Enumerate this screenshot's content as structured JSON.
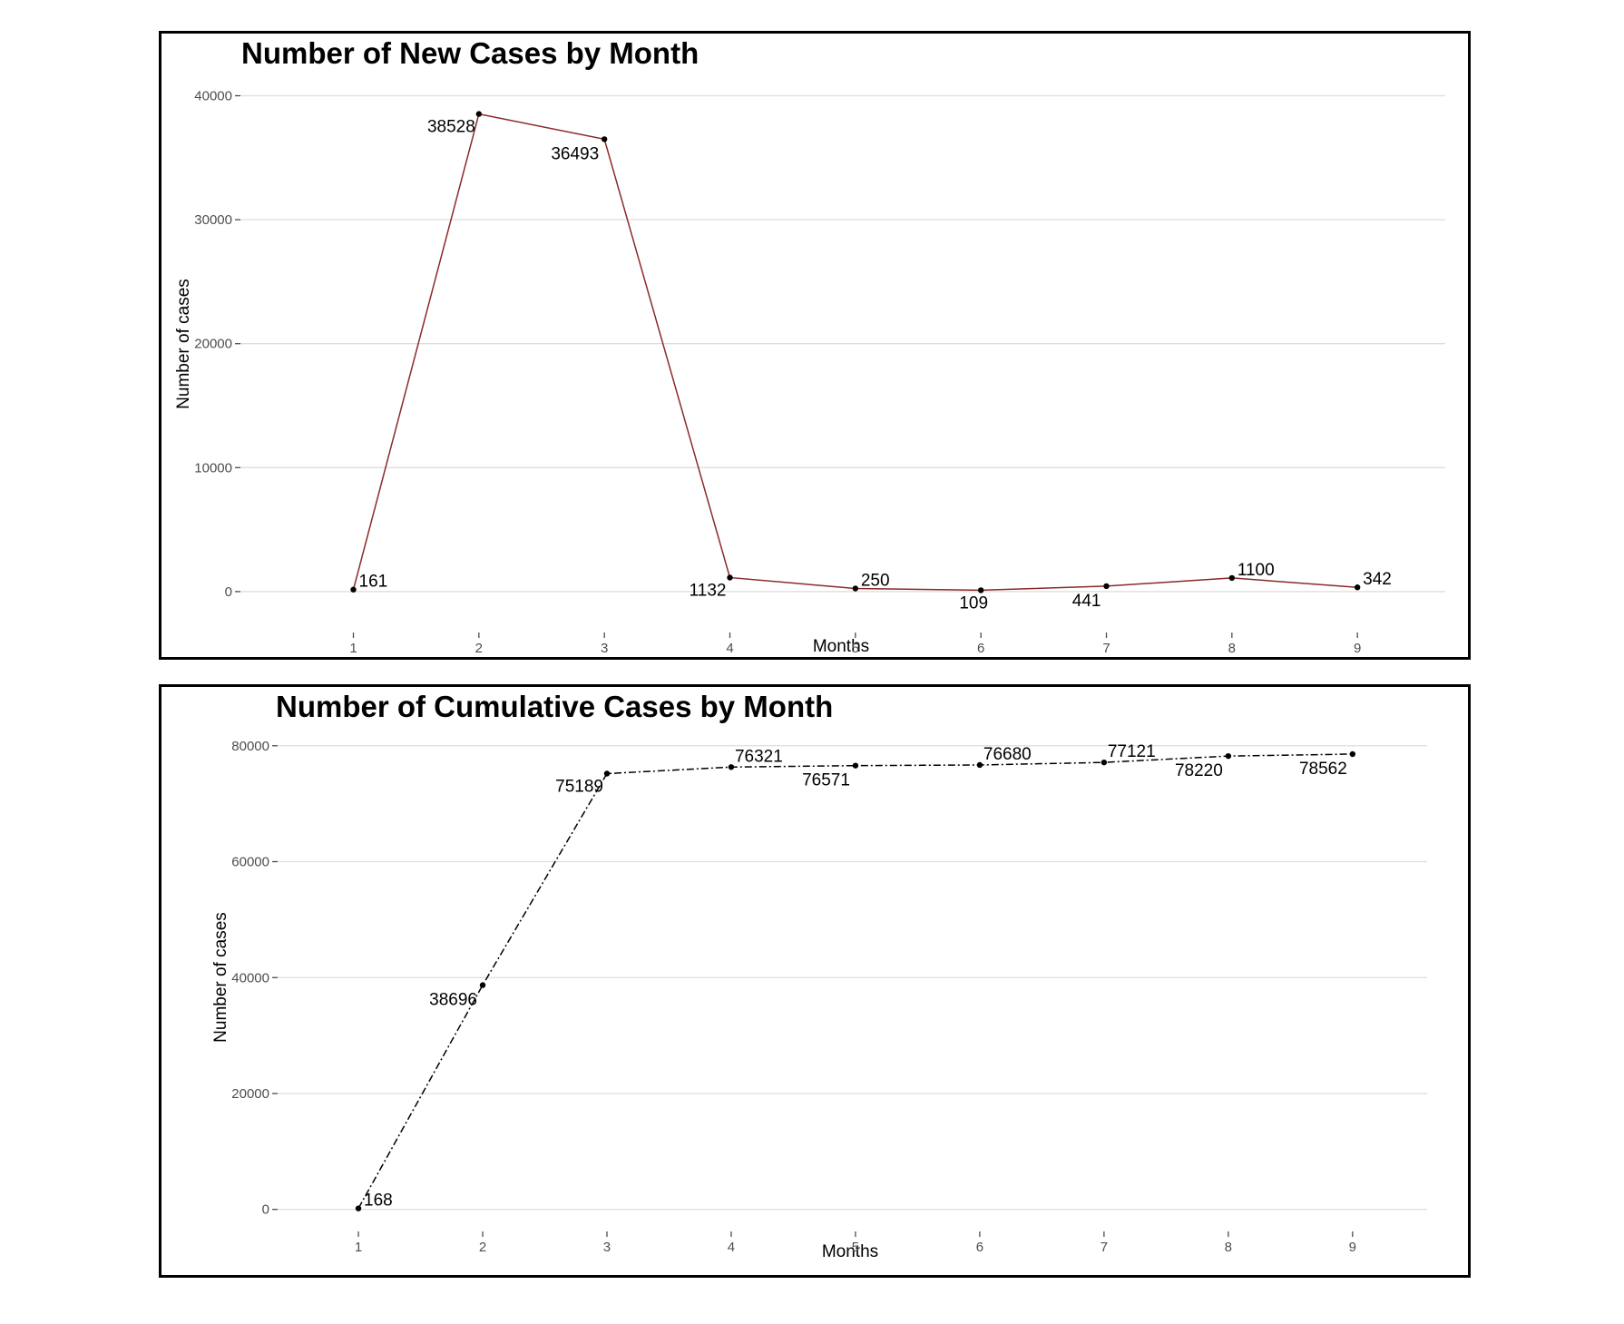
{
  "chart_data": [
    {
      "type": "line",
      "title": "Number of New Cases by Month",
      "xlabel": "Months",
      "ylabel": "Number of cases",
      "x": [
        1,
        2,
        3,
        4,
        5,
        6,
        7,
        8,
        9
      ],
      "series": [
        {
          "values": [
            161,
            38528,
            36493,
            1132,
            250,
            109,
            441,
            1100,
            342
          ]
        }
      ],
      "data_labels": [
        "161",
        "38528",
        "36493",
        "1132",
        "250",
        "109",
        "441",
        "1100",
        "342"
      ],
      "label_positions": [
        "right",
        "left",
        "below-left",
        "left",
        "right",
        "below",
        "below-left",
        "right",
        "right"
      ],
      "xlim": [
        0.1,
        9.7
      ],
      "ylim": [
        -3300,
        41500
      ],
      "yticks": [
        0,
        10000,
        20000,
        30000,
        40000
      ],
      "ytick_labels": [
        "0",
        "10000",
        "20000",
        "30000",
        "40000"
      ],
      "xtick_labels": [
        "1",
        "2",
        "3",
        "4",
        "5",
        "6",
        "7",
        "8",
        "9"
      ],
      "line_color": "#8b2a2a",
      "line_style": "solid",
      "grid": true,
      "legend": "none"
    },
    {
      "type": "line",
      "title": "Number of Cumulative Cases by Month",
      "xlabel": "Months",
      "ylabel": "Number of cases",
      "x": [
        1,
        2,
        3,
        4,
        5,
        6,
        7,
        8,
        9
      ],
      "series": [
        {
          "values": [
            168,
            38696,
            75189,
            76321,
            76571,
            76680,
            77121,
            78220,
            78562
          ]
        }
      ],
      "data_labels": [
        "168",
        "38696",
        "75189",
        "76321",
        "76571",
        "76680",
        "77121",
        "78220",
        "78562"
      ],
      "label_positions": [
        "right",
        "below-left",
        "left",
        "above-right",
        "below-left",
        "above-right",
        "above-right",
        "below-left",
        "below-left"
      ],
      "xlim": [
        0.35,
        9.6
      ],
      "ylim": [
        -3800,
        82000
      ],
      "yticks": [
        0,
        20000,
        40000,
        60000,
        80000
      ],
      "ytick_labels": [
        "0",
        "20000",
        "40000",
        "60000",
        "80000"
      ],
      "xtick_labels": [
        "1",
        "2",
        "3",
        "4",
        "5",
        "6",
        "7",
        "8",
        "9"
      ],
      "line_color": "#000000",
      "line_style": "dash-dot",
      "grid": true,
      "legend": "none"
    }
  ]
}
